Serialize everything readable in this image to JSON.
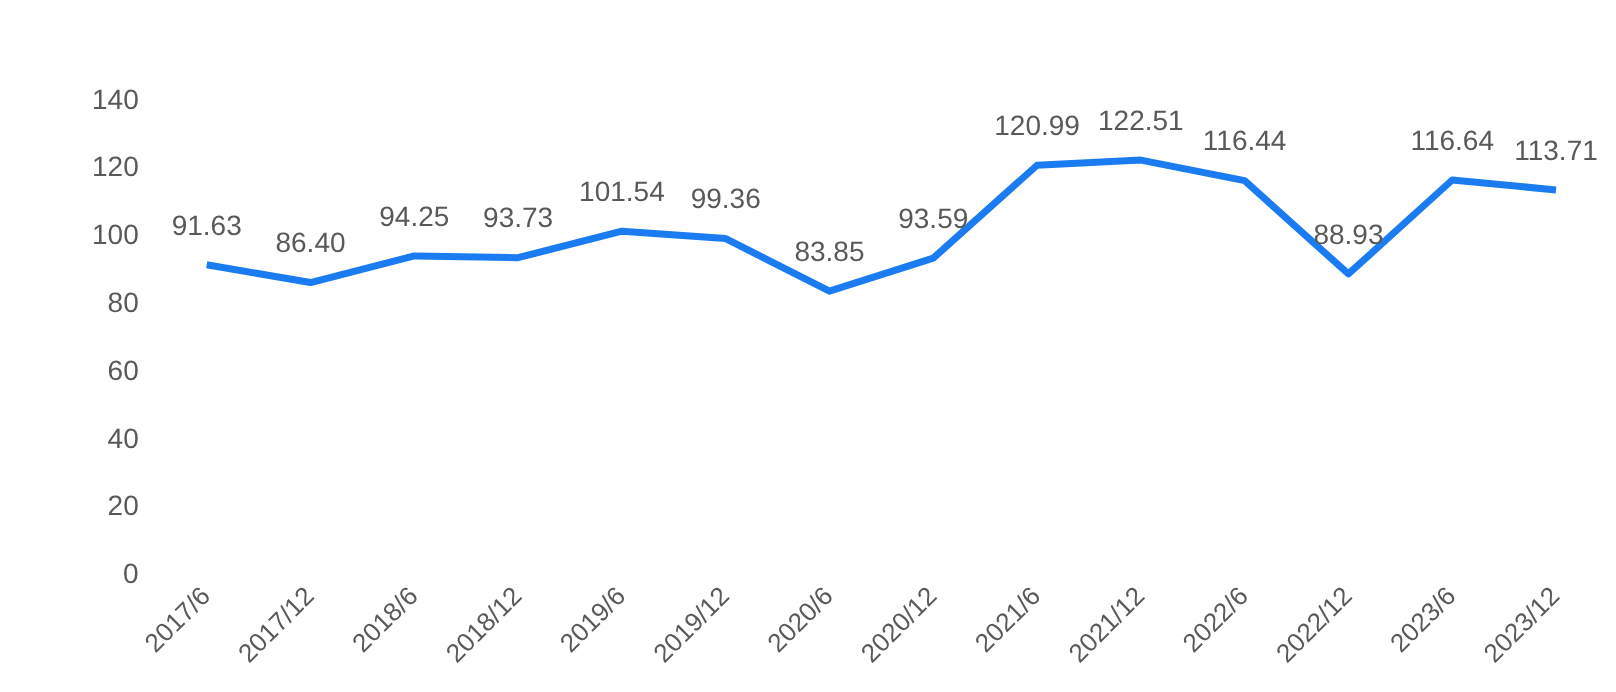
{
  "chart_data": {
    "type": "line",
    "categories": [
      "2017/6",
      "2017/12",
      "2018/6",
      "2018/12",
      "2019/6",
      "2019/12",
      "2020/6",
      "2020/12",
      "2021/6",
      "2021/12",
      "2022/6",
      "2022/12",
      "2023/6",
      "2023/12"
    ],
    "series": [
      {
        "color": "#1a7cf0",
        "values": [
          91.63,
          86.4,
          94.25,
          93.73,
          101.54,
          99.36,
          83.85,
          93.59,
          120.99,
          122.51,
          116.44,
          88.93,
          116.64,
          113.71
        ],
        "value_labels": [
          "91.63",
          "86.40",
          "94.25",
          "93.73",
          "101.54",
          "99.36",
          "83.85",
          "93.59",
          "120.99",
          "122.51",
          "116.44",
          "88.93",
          "116.64",
          "113.71"
        ]
      }
    ],
    "ylim": [
      0,
      140
    ],
    "yticks": [
      0,
      20,
      40,
      60,
      80,
      100,
      120,
      140
    ],
    "grid": false,
    "legend": false,
    "marker": "none",
    "line_style": "solid"
  }
}
